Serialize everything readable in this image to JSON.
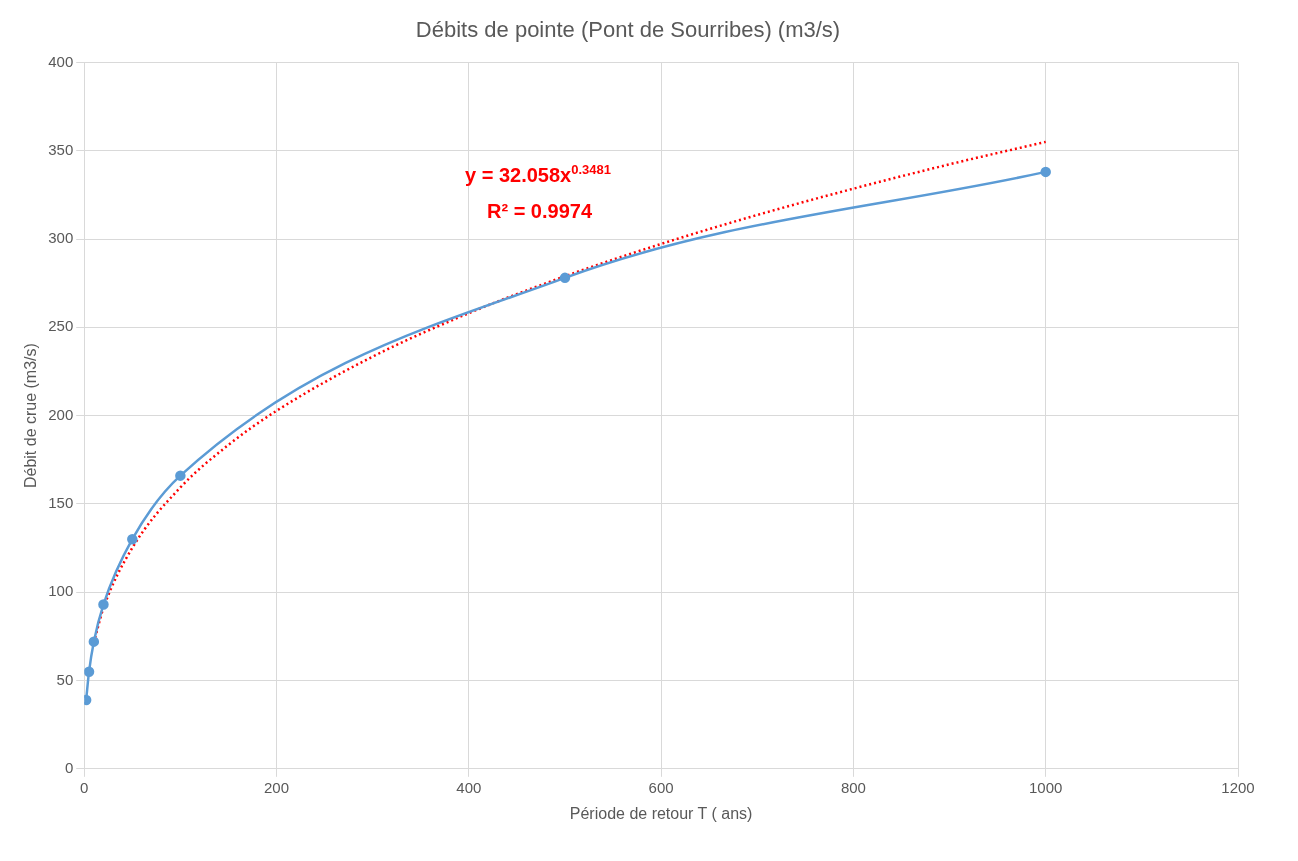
{
  "chart_data": {
    "type": "line",
    "title": "Débits de pointe (Pont de Sourribes) (m3/s)",
    "xlabel": "Période de retour T ( ans)",
    "ylabel": "Débit de crue (m3/s)",
    "xlim": [
      0,
      1200
    ],
    "xticks": [
      0,
      200,
      400,
      600,
      800,
      1000,
      1200
    ],
    "ylim": [
      0,
      400
    ],
    "yticks": [
      0,
      50,
      100,
      150,
      200,
      250,
      300,
      350,
      400
    ],
    "grid": true,
    "legend": false,
    "series": [
      {
        "color": "#5b9bd5",
        "marker": "circle",
        "line_style": "solid",
        "x": [
          2,
          5,
          10,
          20,
          50,
          100,
          500,
          1000
        ],
        "values": [
          39,
          55,
          72,
          93,
          130,
          166,
          278,
          338
        ]
      },
      {
        "color": "#ff0000",
        "marker": "none",
        "line_style": "dotted",
        "x": [
          10,
          20,
          50,
          100,
          150,
          200,
          300,
          400,
          500,
          600,
          700,
          800,
          900,
          1000
        ],
        "values": [
          71.5,
          91.0,
          125.1,
          159.3,
          183.4,
          202.7,
          233.4,
          258.0,
          278.9,
          297.2,
          313.6,
          328.5,
          342.3,
          355.0
        ]
      }
    ],
    "annotations": [
      "y = 32.058x$^{0.3481}$",
      "R² = 0.9974"
    ]
  }
}
